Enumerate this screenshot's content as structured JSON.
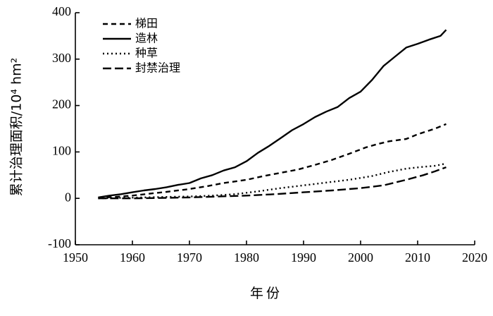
{
  "chart_data": {
    "type": "line",
    "xlabel": "年份",
    "ylabel": "累计治理面积/10⁴ hm²",
    "xlim": [
      1950,
      2020
    ],
    "ylim": [
      -100,
      400
    ],
    "xticks": [
      1950,
      1960,
      1970,
      1980,
      1990,
      2000,
      2010,
      2020
    ],
    "yticks": [
      -100,
      0,
      100,
      200,
      300,
      400
    ],
    "xtick_labels": [
      "1950",
      "1960",
      "1970",
      "1980",
      "1990",
      "2000",
      "2010",
      "2020"
    ],
    "ytick_labels": [
      "-100",
      "0",
      "100",
      "200",
      "300",
      "400"
    ],
    "grid": false,
    "legend_position": "top-left",
    "series": [
      {
        "name": "梯田",
        "dash": "7,5",
        "points": [
          [
            1954,
            1
          ],
          [
            1957,
            3
          ],
          [
            1960,
            6
          ],
          [
            1963,
            10
          ],
          [
            1966,
            14
          ],
          [
            1970,
            20
          ],
          [
            1973,
            26
          ],
          [
            1976,
            33
          ],
          [
            1980,
            40
          ],
          [
            1983,
            48
          ],
          [
            1986,
            55
          ],
          [
            1989,
            62
          ],
          [
            1992,
            72
          ],
          [
            1995,
            83
          ],
          [
            1998,
            96
          ],
          [
            2001,
            110
          ],
          [
            2003,
            117
          ],
          [
            2005,
            123
          ],
          [
            2008,
            128
          ],
          [
            2010,
            138
          ],
          [
            2013,
            150
          ],
          [
            2015,
            160
          ]
        ]
      },
      {
        "name": "造林",
        "dash": "",
        "points": [
          [
            1954,
            2
          ],
          [
            1956,
            6
          ],
          [
            1958,
            9
          ],
          [
            1960,
            13
          ],
          [
            1962,
            17
          ],
          [
            1964,
            20
          ],
          [
            1966,
            24
          ],
          [
            1968,
            29
          ],
          [
            1970,
            33
          ],
          [
            1972,
            43
          ],
          [
            1974,
            50
          ],
          [
            1976,
            60
          ],
          [
            1978,
            67
          ],
          [
            1980,
            80
          ],
          [
            1982,
            98
          ],
          [
            1984,
            113
          ],
          [
            1986,
            130
          ],
          [
            1988,
            147
          ],
          [
            1990,
            160
          ],
          [
            1992,
            175
          ],
          [
            1994,
            187
          ],
          [
            1996,
            197
          ],
          [
            1998,
            216
          ],
          [
            2000,
            230
          ],
          [
            2002,
            255
          ],
          [
            2004,
            285
          ],
          [
            2006,
            305
          ],
          [
            2008,
            325
          ],
          [
            2010,
            333
          ],
          [
            2012,
            342
          ],
          [
            2014,
            350
          ],
          [
            2015,
            363
          ]
        ]
      },
      {
        "name": "种草",
        "dash": "2,4",
        "points": [
          [
            1954,
            0
          ],
          [
            1958,
            1
          ],
          [
            1962,
            2
          ],
          [
            1966,
            3
          ],
          [
            1970,
            4
          ],
          [
            1974,
            6
          ],
          [
            1978,
            9
          ],
          [
            1982,
            15
          ],
          [
            1986,
            22
          ],
          [
            1990,
            28
          ],
          [
            1994,
            34
          ],
          [
            1998,
            40
          ],
          [
            2002,
            48
          ],
          [
            2005,
            57
          ],
          [
            2008,
            64
          ],
          [
            2011,
            68
          ],
          [
            2013,
            70
          ],
          [
            2015,
            75
          ]
        ]
      },
      {
        "name": "封禁治理",
        "dash": "12,5",
        "points": [
          [
            1954,
            0
          ],
          [
            1960,
            0
          ],
          [
            1966,
            1
          ],
          [
            1970,
            2
          ],
          [
            1975,
            4
          ],
          [
            1980,
            6
          ],
          [
            1985,
            9
          ],
          [
            1990,
            13
          ],
          [
            1995,
            17
          ],
          [
            2000,
            22
          ],
          [
            2004,
            28
          ],
          [
            2008,
            40
          ],
          [
            2011,
            50
          ],
          [
            2013,
            58
          ],
          [
            2015,
            67
          ]
        ]
      }
    ]
  }
}
